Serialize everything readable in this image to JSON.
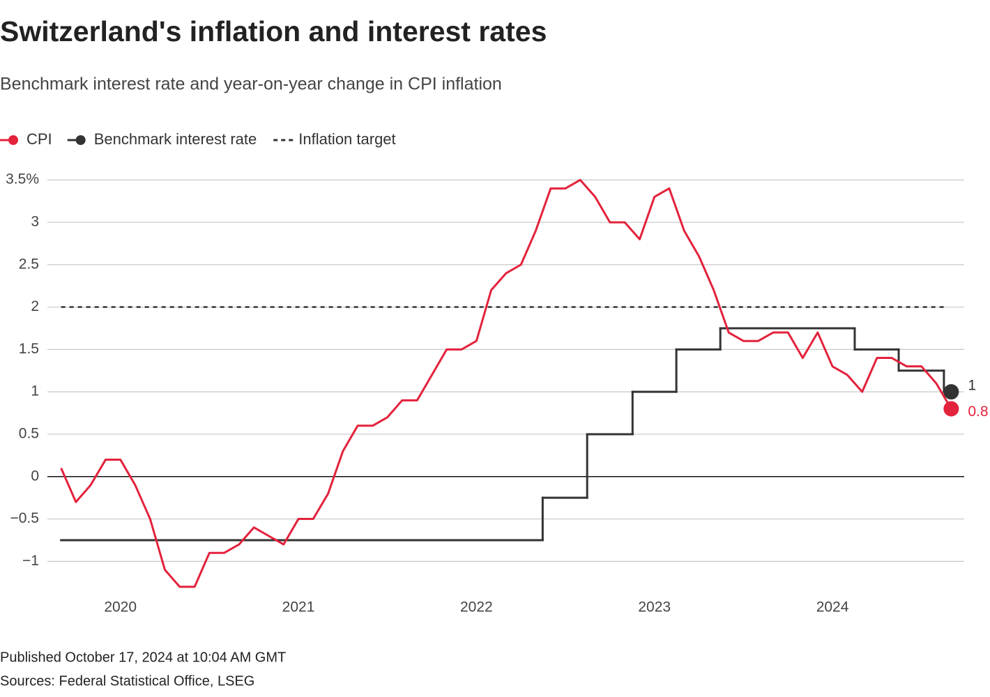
{
  "chart_data": {
    "type": "line",
    "title": "Switzerland's inflation and interest rates",
    "subtitle": "Benchmark interest rate and year-on-year change in CPI inflation",
    "legend": "top-left",
    "grid": true,
    "xlim": [
      2019.59,
      2024.74
    ],
    "xticks": [
      2020,
      2021,
      2022,
      2023,
      2024
    ],
    "ylim": [
      -1.4,
      3.6
    ],
    "yticks": [
      {
        "value": -1,
        "label": "−1"
      },
      {
        "value": -0.5,
        "label": "−0.5"
      },
      0,
      0.5,
      1,
      1.5,
      2,
      2.5,
      3,
      {
        "value": 3.5,
        "label": "3.5%"
      }
    ],
    "series": [
      {
        "name": "CPI",
        "color": "#e3223c",
        "end_marker": true,
        "x": [
          2019.667,
          2019.75,
          2019.833,
          2019.917,
          2020,
          2020.083,
          2020.167,
          2020.25,
          2020.333,
          2020.417,
          2020.5,
          2020.583,
          2020.667,
          2020.75,
          2020.833,
          2020.917,
          2021,
          2021.083,
          2021.167,
          2021.25,
          2021.333,
          2021.417,
          2021.5,
          2021.583,
          2021.667,
          2021.75,
          2021.833,
          2021.917,
          2022,
          2022.083,
          2022.167,
          2022.25,
          2022.333,
          2022.417,
          2022.5,
          2022.583,
          2022.667,
          2022.75,
          2022.833,
          2022.917,
          2023,
          2023.083,
          2023.167,
          2023.25,
          2023.333,
          2023.417,
          2023.5,
          2023.583,
          2023.667,
          2023.75,
          2023.833,
          2023.917,
          2024,
          2024.083,
          2024.167,
          2024.25,
          2024.333,
          2024.417,
          2024.5,
          2024.583,
          2024.667
        ],
        "values": [
          0.1,
          -0.3,
          -0.1,
          0.2,
          0.2,
          -0.1,
          -0.5,
          -1.1,
          -1.3,
          -1.3,
          -0.9,
          -0.9,
          -0.8,
          -0.6,
          -0.7,
          -0.8,
          -0.5,
          -0.5,
          -0.2,
          0.3,
          0.6,
          0.6,
          0.7,
          0.9,
          0.9,
          1.2,
          1.5,
          1.5,
          1.6,
          2.2,
          2.4,
          2.5,
          2.9,
          3.4,
          3.4,
          3.5,
          3.3,
          3.0,
          3.0,
          2.8,
          3.3,
          3.4,
          2.9,
          2.6,
          2.2,
          1.7,
          1.6,
          1.6,
          1.7,
          1.7,
          1.4,
          1.7,
          1.3,
          1.2,
          1.0,
          1.4,
          1.4,
          1.3,
          1.3,
          1.1,
          0.8
        ]
      },
      {
        "name": "Benchmark interest rate",
        "color": "#333333",
        "end_marker": true,
        "step": true,
        "x": [
          2019.667,
          2022.372,
          2022.622,
          2022.877,
          2023.123,
          2023.37,
          2024.125,
          2024.372,
          2024.626,
          2024.667
        ],
        "values": [
          -0.75,
          -0.25,
          0.5,
          1.0,
          1.5,
          1.75,
          1.5,
          1.25,
          1.0,
          1.0
        ]
      },
      {
        "name": "Inflation target",
        "color": "#333333",
        "dashed": true,
        "x": [
          2019.667,
          2024.626
        ],
        "values": [
          2,
          2
        ]
      }
    ]
  },
  "footer": [
    "Published October 17, 2024 at 10:04 AM GMT",
    "Sources: Federal Statistical Office, LSEG"
  ]
}
